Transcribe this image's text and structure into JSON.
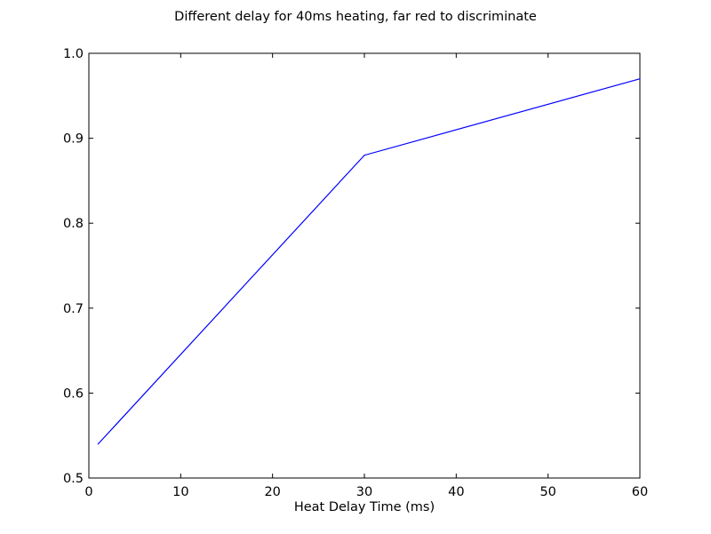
{
  "chart_data": {
    "type": "line",
    "title": "Different delay for 40ms heating, far red to discriminate",
    "xlabel": "Heat Delay Time (ms)",
    "ylabel": "",
    "xlim": [
      0,
      60
    ],
    "ylim": [
      0.5,
      1.0
    ],
    "xticks": [
      0,
      10,
      20,
      30,
      40,
      50,
      60
    ],
    "xtick_labels": [
      "0",
      "10",
      "20",
      "30",
      "40",
      "50",
      "60"
    ],
    "yticks": [
      0.5,
      0.6,
      0.7,
      0.8,
      0.9,
      1.0
    ],
    "ytick_labels": [
      "0.5",
      "0.6",
      "0.7",
      "0.8",
      "0.9",
      "1.0"
    ],
    "grid": false,
    "legend": "none",
    "series": [
      {
        "x": [
          1,
          30,
          60
        ],
        "y": [
          0.54,
          0.88,
          0.97
        ],
        "color": "#0000ff"
      }
    ]
  }
}
